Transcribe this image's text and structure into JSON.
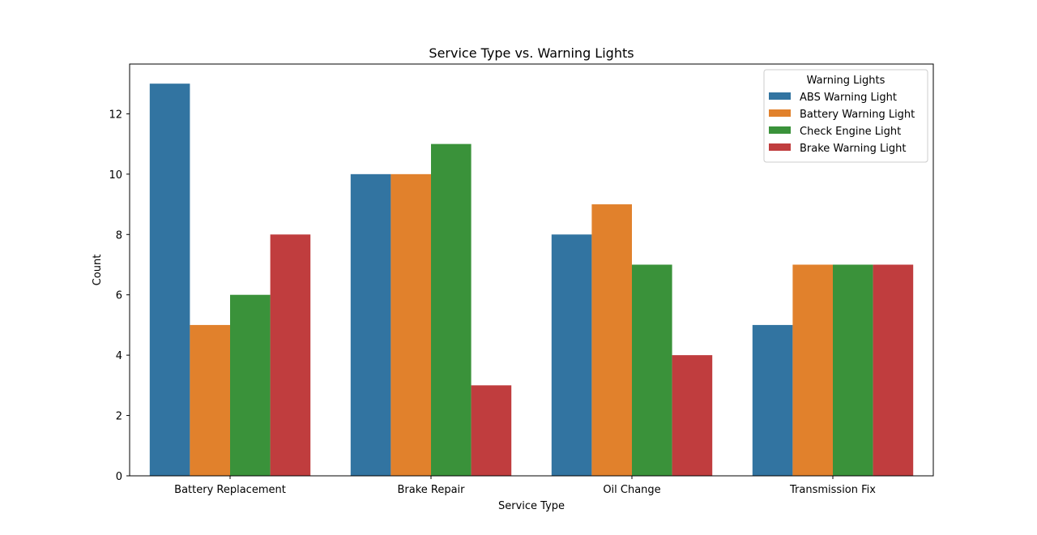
{
  "chart_data": {
    "type": "bar",
    "title": "Service Type vs. Warning Lights",
    "xlabel": "Service Type",
    "ylabel": "Count",
    "ylim": [
      0,
      13.65
    ],
    "yticks": [
      0,
      2,
      4,
      6,
      8,
      10,
      12
    ],
    "categories": [
      "Battery Replacement",
      "Brake Repair",
      "Oil Change",
      "Transmission Fix"
    ],
    "series": [
      {
        "name": "ABS Warning Light",
        "color": "#3274a1",
        "values": [
          13,
          10,
          8,
          5
        ]
      },
      {
        "name": "Battery Warning Light",
        "color": "#e1812c",
        "values": [
          5,
          10,
          9,
          7
        ]
      },
      {
        "name": "Check Engine Light",
        "color": "#3a923a",
        "values": [
          6,
          11,
          7,
          7
        ]
      },
      {
        "name": "Brake Warning Light",
        "color": "#c03d3e",
        "values": [
          8,
          3,
          4,
          7
        ]
      }
    ],
    "legend": {
      "title": "Warning Lights",
      "placement": "top-right"
    },
    "grid": false
  }
}
